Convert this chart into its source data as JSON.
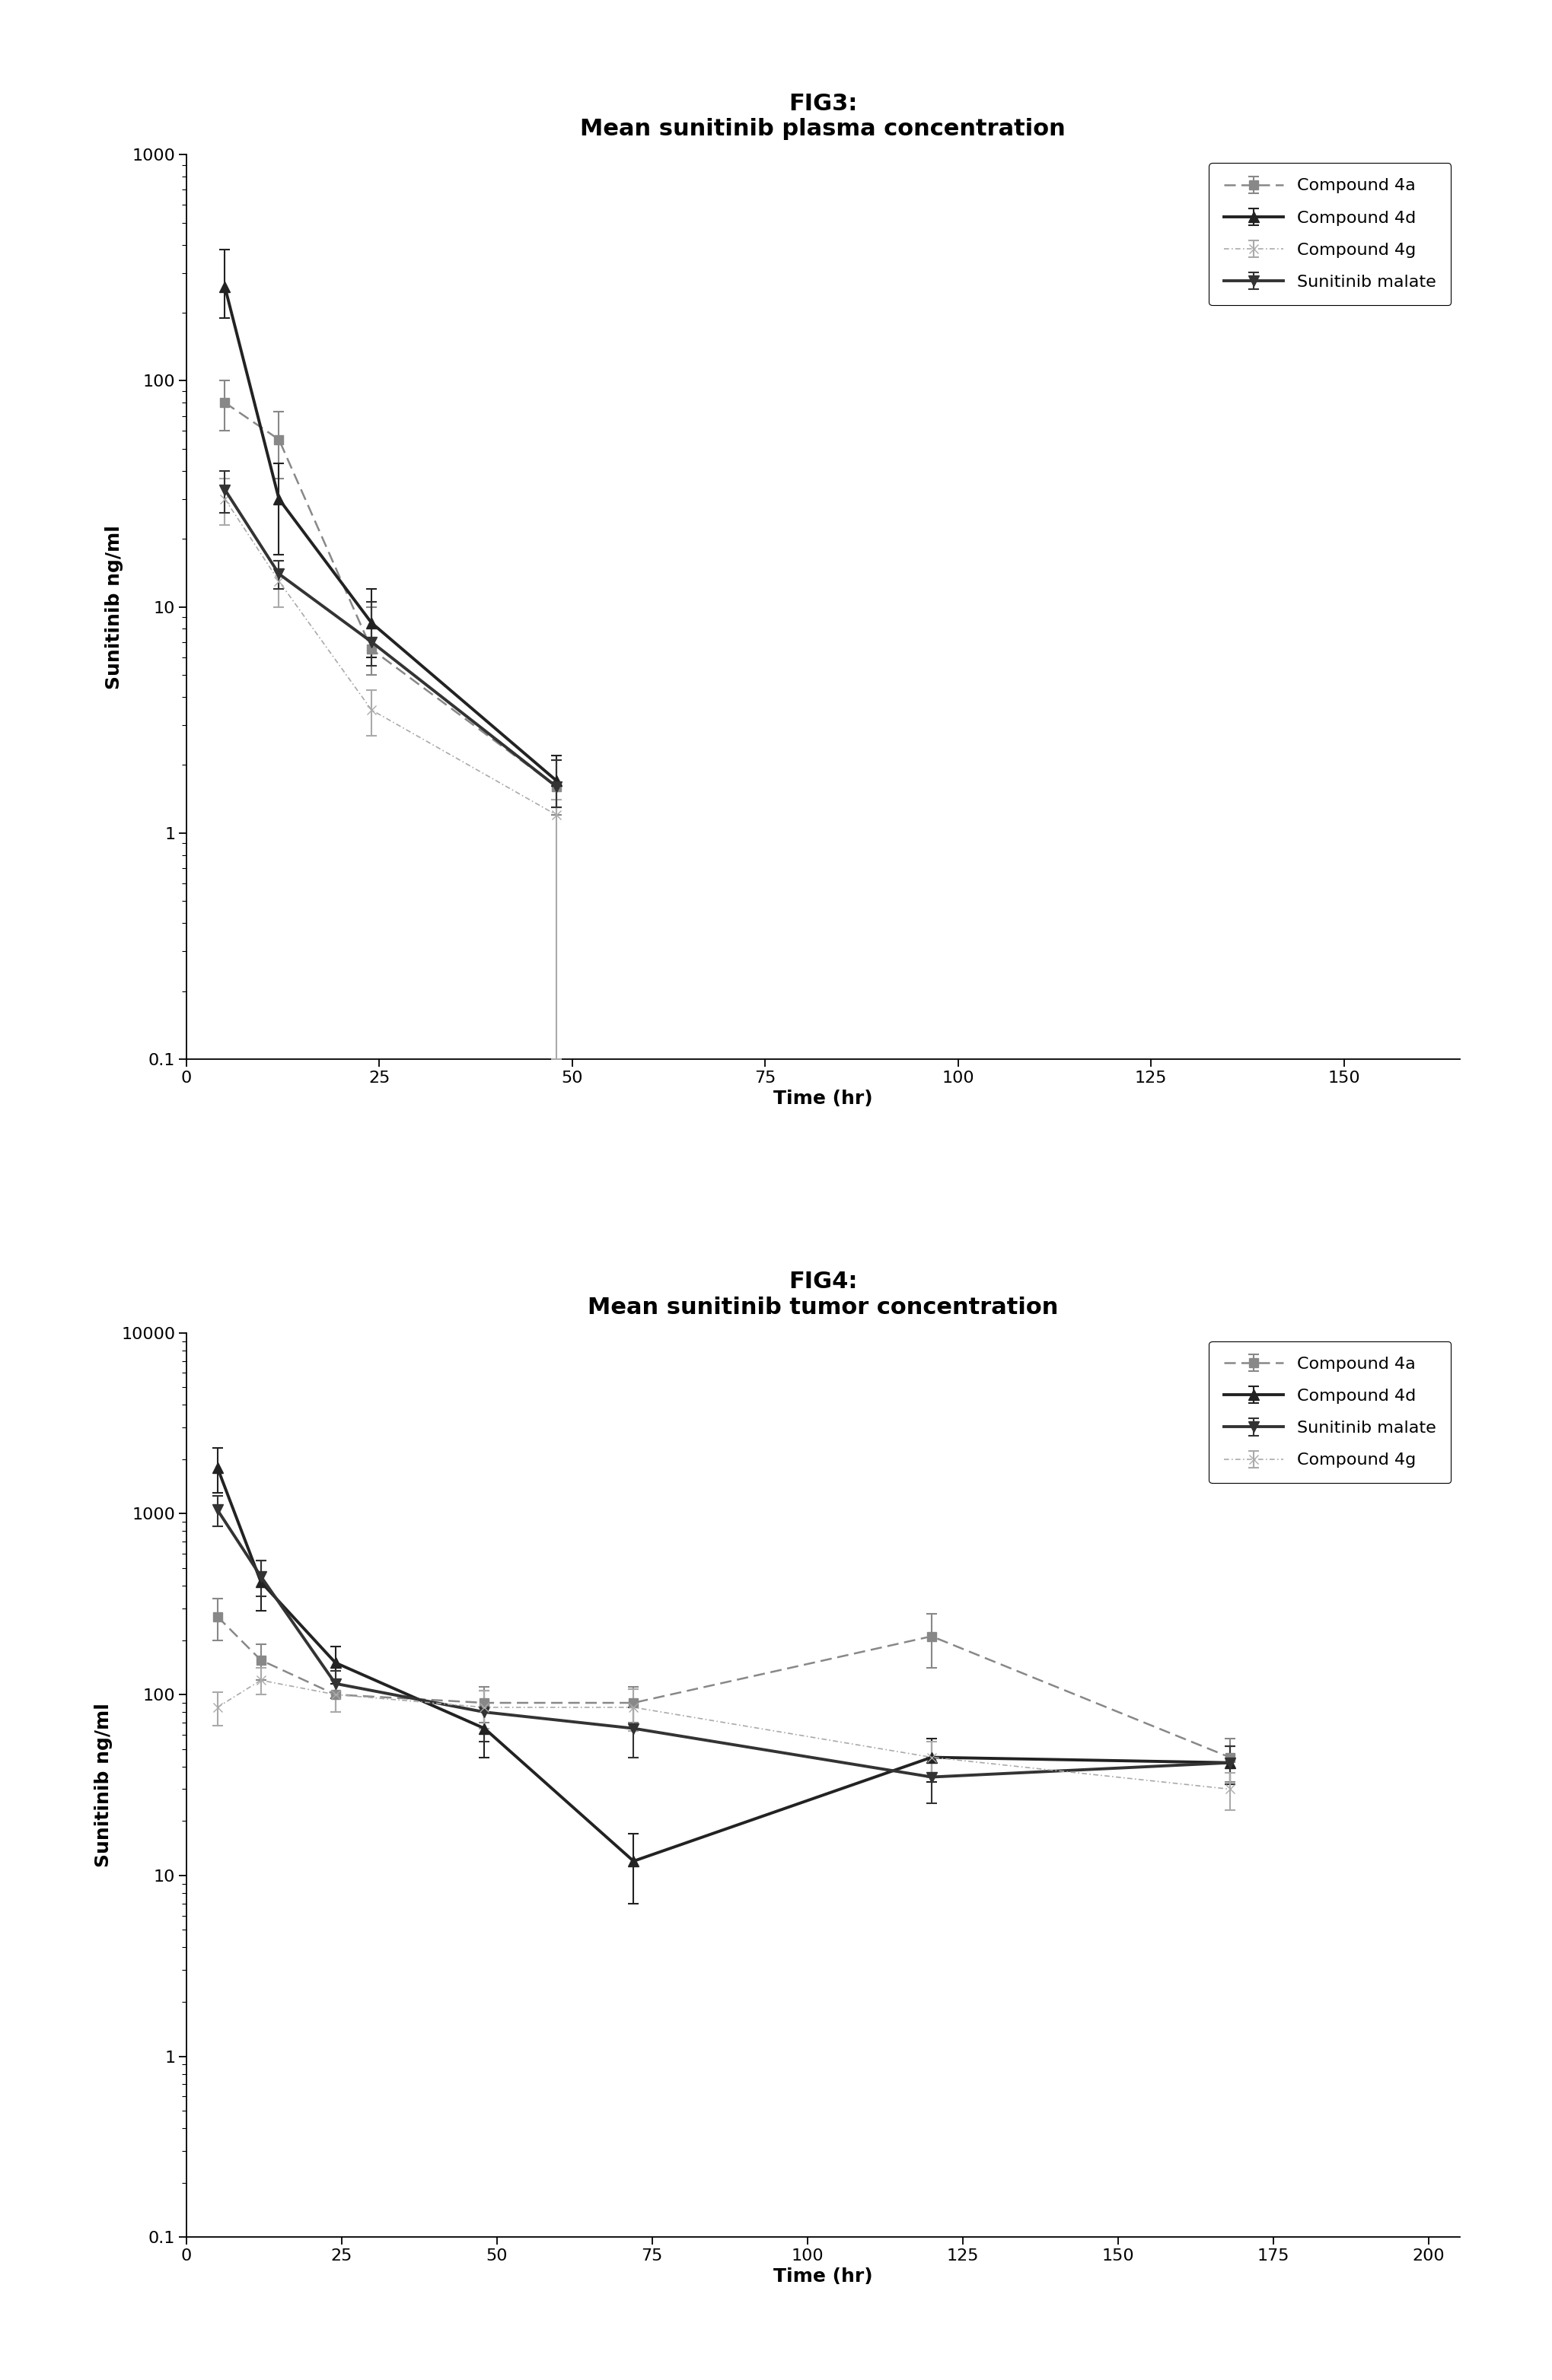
{
  "fig3": {
    "title_line1": "FIG3:",
    "title_line2": "Mean sunitinib plasma concentration",
    "xlabel": "Time (hr)",
    "ylabel": "Sunitinib ng/ml",
    "ylim": [
      0.1,
      1000
    ],
    "xlim": [
      0,
      165
    ],
    "xticks": [
      0,
      25,
      50,
      75,
      100,
      125,
      150
    ],
    "yticks": [
      0.1,
      1,
      10,
      100,
      1000
    ],
    "series": [
      {
        "label": "Compound 4a",
        "color": "#888888",
        "linestyle": "--",
        "marker": "s",
        "markersize": 8,
        "linewidth": 1.8,
        "x": [
          5,
          12,
          24,
          48
        ],
        "y": [
          80,
          55,
          6.5,
          1.6
        ],
        "yerr_lo": [
          20,
          18,
          1.5,
          0.4
        ],
        "yerr_hi": [
          20,
          18,
          3.5,
          0.5
        ]
      },
      {
        "label": "Compound 4d",
        "color": "#222222",
        "linestyle": "-",
        "marker": "^",
        "markersize": 10,
        "linewidth": 2.8,
        "x": [
          5,
          12,
          24,
          48
        ],
        "y": [
          260,
          30,
          8.5,
          1.7
        ],
        "yerr_lo": [
          70,
          13,
          2.5,
          0.4
        ],
        "yerr_hi": [
          120,
          13,
          3.5,
          0.5
        ]
      },
      {
        "label": "Compound 4g",
        "color": "#aaaaaa",
        "linestyle": "-.",
        "marker": "x",
        "markersize": 8,
        "linewidth": 1.2,
        "x": [
          5,
          12,
          24,
          48
        ],
        "y": [
          30,
          13,
          3.5,
          1.2
        ],
        "yerr_lo": [
          7,
          3,
          0.8,
          1.1
        ],
        "yerr_hi": [
          7,
          3,
          0.8,
          0.2
        ]
      },
      {
        "label": "Sunitinib malate",
        "color": "#333333",
        "linestyle": "-",
        "marker": "v",
        "markersize": 10,
        "linewidth": 2.8,
        "x": [
          5,
          12,
          24,
          48
        ],
        "y": [
          33,
          14,
          7.0,
          1.6
        ],
        "yerr_lo": [
          7,
          2,
          1.5,
          0.3
        ],
        "yerr_hi": [
          7,
          2,
          3.5,
          0.5
        ]
      }
    ]
  },
  "fig4": {
    "title_line1": "FIG4:",
    "title_line2": "Mean sunitinib tumor concentration",
    "xlabel": "Time (hr)",
    "ylabel": "Sunitinib ng/ml",
    "ylim": [
      0.1,
      10000
    ],
    "xlim": [
      0,
      205
    ],
    "xticks": [
      0,
      25,
      50,
      75,
      100,
      125,
      150,
      175,
      200
    ],
    "yticks": [
      0.1,
      1,
      10,
      100,
      1000,
      10000
    ],
    "series": [
      {
        "label": "Compound 4a",
        "color": "#888888",
        "linestyle": "--",
        "marker": "s",
        "markersize": 8,
        "linewidth": 1.8,
        "x": [
          5,
          12,
          24,
          48,
          72,
          120,
          168
        ],
        "y": [
          270,
          155,
          100,
          90,
          90,
          210,
          45
        ],
        "yerr_lo": [
          70,
          35,
          20,
          20,
          20,
          70,
          12
        ],
        "yerr_hi": [
          70,
          35,
          20,
          20,
          20,
          70,
          12
        ]
      },
      {
        "label": "Compound 4d",
        "color": "#222222",
        "linestyle": "-",
        "marker": "^",
        "markersize": 10,
        "linewidth": 2.8,
        "x": [
          5,
          12,
          24,
          48,
          72,
          120,
          168
        ],
        "y": [
          1800,
          420,
          150,
          65,
          12,
          45,
          42
        ],
        "yerr_lo": [
          500,
          130,
          35,
          20,
          5,
          12,
          10
        ],
        "yerr_hi": [
          500,
          130,
          35,
          20,
          5,
          12,
          10
        ]
      },
      {
        "label": "Sunitinib malate",
        "color": "#333333",
        "linestyle": "-",
        "marker": "v",
        "markersize": 10,
        "linewidth": 2.8,
        "x": [
          5,
          12,
          24,
          48,
          72,
          120,
          168
        ],
        "y": [
          1050,
          450,
          115,
          80,
          65,
          35,
          42
        ],
        "yerr_lo": [
          200,
          100,
          20,
          25,
          20,
          10,
          10
        ],
        "yerr_hi": [
          200,
          100,
          20,
          25,
          20,
          10,
          10
        ]
      },
      {
        "label": "Compound 4g",
        "color": "#aaaaaa",
        "linestyle": "-.",
        "marker": "x",
        "markersize": 8,
        "linewidth": 1.2,
        "x": [
          5,
          12,
          24,
          48,
          72,
          120,
          168
        ],
        "y": [
          85,
          120,
          100,
          85,
          85,
          45,
          30
        ],
        "yerr_lo": [
          18,
          20,
          20,
          20,
          22,
          10,
          7
        ],
        "yerr_hi": [
          18,
          20,
          20,
          20,
          22,
          10,
          7
        ]
      }
    ]
  },
  "background_color": "#ffffff",
  "title_fontsize": 22,
  "label_fontsize": 18,
  "tick_fontsize": 16,
  "legend_fontsize": 16
}
